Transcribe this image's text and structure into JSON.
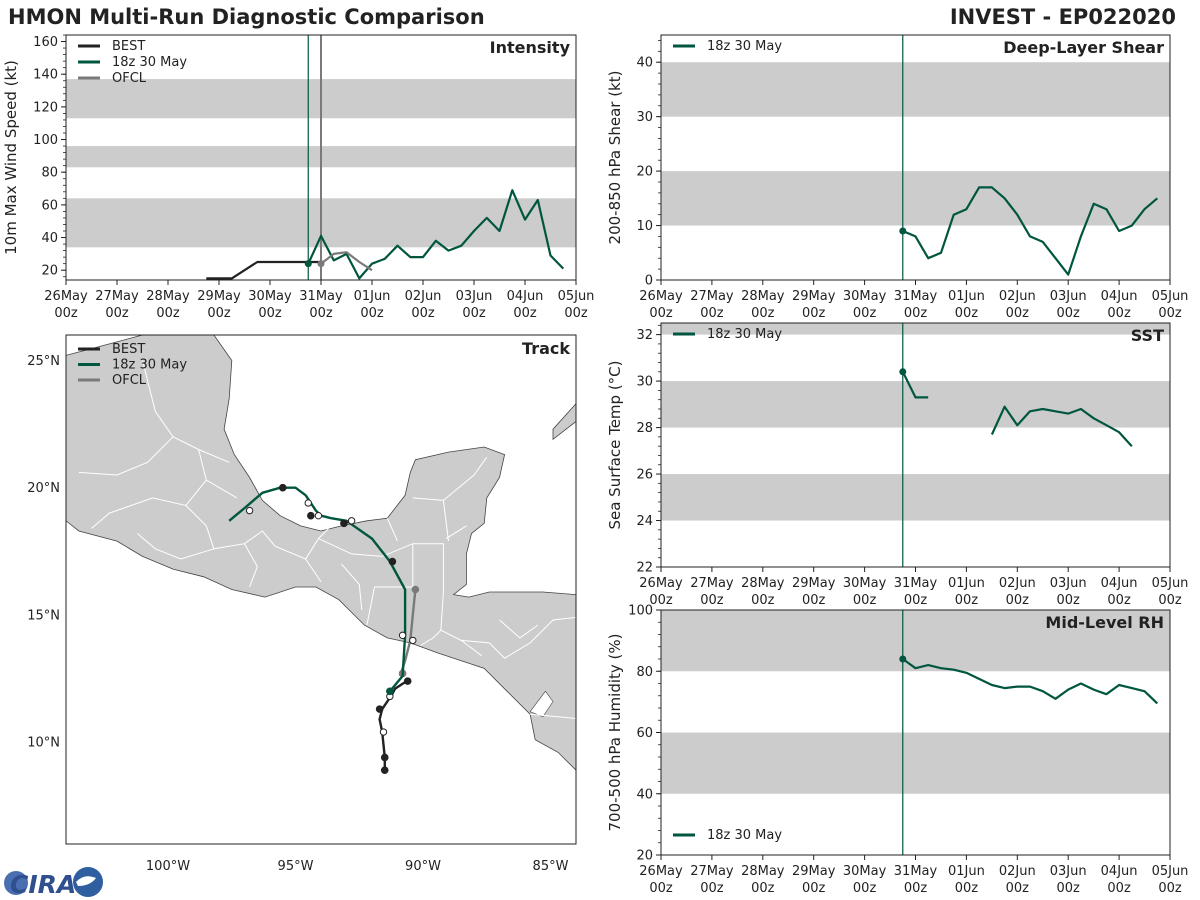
{
  "header": {
    "title": "HMON Multi-Run Diagnostic Comparison",
    "storm": "INVEST - EP022020"
  },
  "colors": {
    "best": "#222222",
    "model": "#00563f",
    "ofcl": "#7a7a7a",
    "band": "#cccccc",
    "land": "#cccccc",
    "border": "#ffffff",
    "marker_line": "#00563f",
    "ofcl_marker_line": "#7a7a7a"
  },
  "time_axis": {
    "ticks": [
      0,
      1,
      2,
      3,
      4,
      5,
      6,
      7,
      8,
      9,
      10
    ],
    "date_labels": [
      "26May",
      "27May",
      "28May",
      "29May",
      "30May",
      "31May",
      "01Jun",
      "02Jun",
      "03Jun",
      "04Jun",
      "05Jun"
    ],
    "hour_label": "00z"
  },
  "logo": {
    "text": "CIRA",
    "icon": "cira-logo-icon"
  },
  "chart_data": [
    {
      "id": "intensity",
      "type": "line",
      "title": "Intensity",
      "ylabel": "10m Max Wind Speed (kt)",
      "xlim": [
        0,
        10
      ],
      "ylim": [
        14,
        164
      ],
      "yticks": [
        20,
        40,
        60,
        80,
        100,
        120,
        140,
        160
      ],
      "bands": [
        [
          34,
          64
        ],
        [
          83,
          96
        ],
        [
          113,
          137
        ]
      ],
      "markers": {
        "model_init": 4.75,
        "ofcl_init": 5.0
      },
      "legend": [
        "BEST",
        "18z 30 May",
        "OFCL"
      ],
      "series": [
        {
          "name": "BEST",
          "color": "#222222",
          "x": [
            2.75,
            3.25,
            3.75,
            4.0,
            4.25,
            4.5,
            4.75,
            5.0
          ],
          "y": [
            15,
            15,
            25,
            25,
            25,
            25,
            25,
            25
          ]
        },
        {
          "name": "18z 30 May",
          "color": "#00563f",
          "x": [
            4.75,
            5.0,
            5.25,
            5.5,
            5.75,
            6.0,
            6.25,
            6.5,
            6.75,
            7.0,
            7.25,
            7.5,
            7.75,
            8.0,
            8.25,
            8.5,
            8.75,
            9.0,
            9.25,
            9.5,
            9.75
          ],
          "y": [
            24,
            41,
            26,
            30,
            15,
            24,
            27,
            35,
            28,
            28,
            38,
            32,
            35,
            44,
            52,
            44,
            69,
            51,
            63,
            29,
            21
          ]
        },
        {
          "name": "OFCL",
          "color": "#7a7a7a",
          "x": [
            5.0,
            5.25,
            5.5,
            5.75,
            6.0
          ],
          "y": [
            24,
            30,
            31,
            25,
            20
          ]
        }
      ],
      "points": {
        "model_start": [
          4.75,
          24
        ],
        "ofcl_start": [
          5.0,
          24
        ]
      }
    },
    {
      "id": "shear",
      "type": "line",
      "title": "Deep-Layer Shear",
      "ylabel": "200-850 hPa Shear (kt)",
      "xlim": [
        0,
        10
      ],
      "ylim": [
        0,
        45
      ],
      "yticks": [
        0,
        10,
        20,
        30,
        40
      ],
      "bands": [
        [
          10,
          20
        ],
        [
          30,
          40
        ]
      ],
      "markers": {
        "model_init": 4.75
      },
      "legend": [
        "18z 30 May"
      ],
      "series": [
        {
          "name": "18z 30 May",
          "color": "#00563f",
          "x": [
            4.75,
            5.0,
            5.25,
            5.5,
            5.75,
            6.0,
            6.25,
            6.5,
            6.75,
            7.0,
            7.25,
            7.5,
            7.75,
            8.0,
            8.25,
            8.5,
            8.75,
            9.0,
            9.25,
            9.5,
            9.75
          ],
          "y": [
            9,
            8,
            4,
            5,
            12,
            13,
            17,
            17,
            15,
            12,
            8,
            7,
            4,
            1,
            8,
            14,
            13,
            9,
            10,
            13,
            15
          ]
        }
      ],
      "points": {
        "model_start": [
          4.75,
          9
        ]
      }
    },
    {
      "id": "sst",
      "type": "line",
      "title": "SST",
      "ylabel": "Sea Surface Temp (°C)",
      "xlim": [
        0,
        10
      ],
      "ylim": [
        22,
        32.5
      ],
      "yticks": [
        22,
        24,
        26,
        28,
        30,
        32
      ],
      "bands": [
        [
          24,
          26
        ],
        [
          28,
          30
        ],
        [
          32,
          32.5
        ]
      ],
      "markers": {
        "model_init": 4.75
      },
      "legend": [
        "18z 30 May"
      ],
      "series": [
        {
          "name": "18z 30 May (segment 1)",
          "color": "#00563f",
          "x": [
            4.75,
            5.0,
            5.25
          ],
          "y": [
            30.4,
            29.3,
            29.3
          ]
        },
        {
          "name": "18z 30 May (segment 2)",
          "color": "#00563f",
          "x": [
            6.5,
            6.75,
            7.0,
            7.25,
            7.5,
            7.75,
            8.0,
            8.25,
            8.5,
            8.75,
            9.0,
            9.25
          ],
          "y": [
            27.7,
            28.9,
            28.1,
            28.7,
            28.8,
            28.7,
            28.6,
            28.8,
            28.4,
            28.1,
            27.8,
            27.2
          ]
        }
      ],
      "points": {
        "model_start": [
          4.75,
          30.4
        ]
      }
    },
    {
      "id": "rh",
      "type": "line",
      "title": "Mid-Level RH",
      "ylabel": "700-500 hPa Humidity (%)",
      "xlim": [
        0,
        10
      ],
      "ylim": [
        20,
        100
      ],
      "yticks": [
        20,
        40,
        60,
        80,
        100
      ],
      "bands": [
        [
          40,
          60
        ],
        [
          80,
          100
        ]
      ],
      "markers": {
        "model_init": 4.75
      },
      "legend": [
        "18z 30 May"
      ],
      "series": [
        {
          "name": "18z 30 May",
          "color": "#00563f",
          "x": [
            4.75,
            5.0,
            5.25,
            5.5,
            5.75,
            6.0,
            6.25,
            6.5,
            6.75,
            7.0,
            7.25,
            7.5,
            7.75,
            8.0,
            8.25,
            8.5,
            8.75,
            9.0,
            9.25,
            9.5,
            9.75
          ],
          "y": [
            84,
            81,
            82,
            81,
            80.5,
            79.5,
            77.5,
            75.5,
            74.5,
            75,
            75,
            73.5,
            71,
            74,
            76,
            74,
            72.5,
            75.5,
            74.5,
            73.5,
            69.5
          ]
        }
      ],
      "points": {
        "model_start": [
          4.75,
          84
        ]
      }
    },
    {
      "id": "track",
      "type": "map",
      "title": "Track",
      "lon_range": [
        -104,
        -84
      ],
      "lat_range": [
        6,
        26
      ],
      "lon_ticks": [
        -100,
        -95,
        -90,
        -85
      ],
      "lon_tick_labels": [
        "100°W",
        "95°W",
        "90°W",
        "85°W"
      ],
      "lat_ticks": [
        10,
        15,
        20,
        25
      ],
      "lat_tick_labels": [
        "10°N",
        "15°N",
        "20°N",
        "25°N"
      ],
      "legend": [
        "BEST",
        "18z 30 May",
        "OFCL"
      ],
      "tracks": [
        {
          "name": "BEST",
          "color": "#222222",
          "lon": [
            -91.5,
            -91.5,
            -91.55,
            -91.6,
            -91.7,
            -91.6,
            -91.4,
            -91.2,
            -91.1,
            -90.8,
            -90.6
          ],
          "lat": [
            8.9,
            9.4,
            9.9,
            10.4,
            10.9,
            11.3,
            11.6,
            11.9,
            12.1,
            12.3,
            12.4
          ],
          "filled": [
            [
              -91.5,
              8.9
            ],
            [
              -91.5,
              9.4
            ],
            [
              -91.7,
              11.3
            ],
            [
              -90.6,
              12.4
            ]
          ],
          "open": [
            [
              -91.55,
              10.4
            ],
            [
              -91.3,
              11.8
            ]
          ]
        },
        {
          "name": "OFCL",
          "color": "#7a7a7a",
          "lon": [
            -90.9,
            -90.7,
            -90.5,
            -90.4,
            -90.3
          ],
          "lat": [
            12.6,
            13.2,
            14.0,
            15.0,
            16.0
          ],
          "filled": [
            [
              -90.8,
              12.7
            ],
            [
              -90.3,
              16.0
            ]
          ],
          "open": [
            [
              -90.4,
              14.0
            ]
          ]
        },
        {
          "name": "18z 30 May",
          "color": "#00563f",
          "lon": [
            -91.3,
            -90.8,
            -90.7,
            -90.7,
            -91.3,
            -92.0,
            -93.0,
            -93.6,
            -94.0,
            -94.2,
            -94.6,
            -95.0,
            -95.6,
            -96.3,
            -97.0,
            -97.6
          ],
          "lat": [
            12.0,
            12.6,
            14.2,
            16.0,
            17.1,
            18.0,
            18.7,
            18.8,
            18.9,
            19.1,
            19.7,
            20.0,
            20.0,
            19.8,
            19.2,
            18.7
          ],
          "filled": [
            [
              -91.2,
              17.1
            ],
            [
              -93.1,
              18.6
            ],
            [
              -94.4,
              18.9
            ],
            [
              -95.5,
              20.0
            ],
            [
              -91.3,
              12.0
            ]
          ],
          "open": [
            [
              -90.8,
              14.2
            ],
            [
              -92.8,
              18.7
            ],
            [
              -94.1,
              18.9
            ],
            [
              -94.5,
              19.4
            ],
            [
              -96.8,
              19.1
            ]
          ]
        }
      ]
    }
  ]
}
